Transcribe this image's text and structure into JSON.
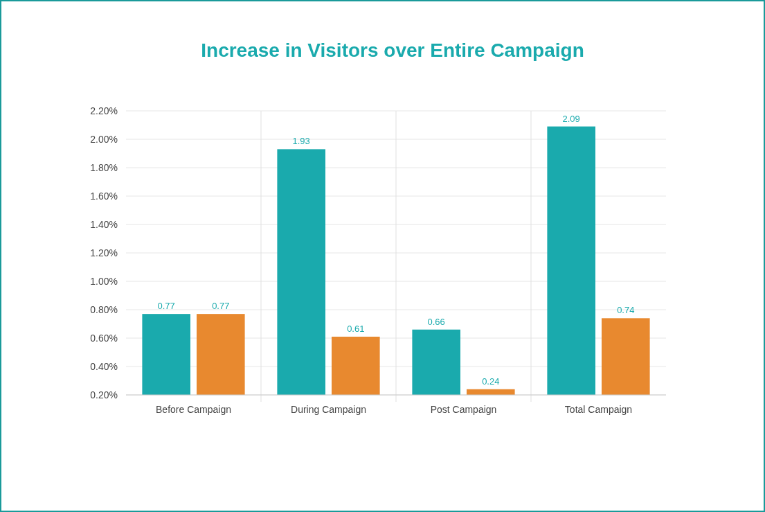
{
  "chart_data": {
    "type": "bar",
    "title": "Increase in Visitors over Entire Campaign",
    "categories": [
      "Before Campaign",
      "During Campaign",
      "Post Campaign",
      "Total Campaign"
    ],
    "series": [
      {
        "color": "#1aaaad",
        "values": [
          0.77,
          1.93,
          0.66,
          2.09
        ]
      },
      {
        "color": "#e8892f",
        "values": [
          0.77,
          0.61,
          0.24,
          0.74
        ]
      }
    ],
    "ylim": [
      0.2,
      2.2
    ],
    "yticks": [
      {
        "value": 0.2,
        "label": "0.20%"
      },
      {
        "value": 0.4,
        "label": "0.40%"
      },
      {
        "value": 0.6,
        "label": "0.60%"
      },
      {
        "value": 0.8,
        "label": "0.80%"
      },
      {
        "value": 1.0,
        "label": "1.00%"
      },
      {
        "value": 1.2,
        "label": "1.20%"
      },
      {
        "value": 1.4,
        "label": "1.40%"
      },
      {
        "value": 1.6,
        "label": "1.60%"
      },
      {
        "value": 1.8,
        "label": "1.80%"
      },
      {
        "value": 2.0,
        "label": "2.00%"
      },
      {
        "value": 2.2,
        "label": "2.20%"
      }
    ],
    "grid": true,
    "data_labels": true
  }
}
